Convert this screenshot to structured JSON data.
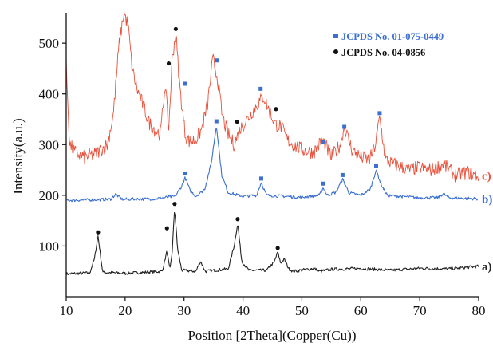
{
  "chart_data": {
    "type": "line",
    "xlabel": "Position [2Theta](Copper(Cu))",
    "ylabel": "Intensity(a.u.)",
    "xlim": [
      10,
      80
    ],
    "ylim": [
      0,
      560
    ],
    "x_ticks": [
      10,
      20,
      30,
      40,
      50,
      60,
      70,
      80
    ],
    "y_ticks": [
      100,
      200,
      300,
      400,
      500
    ],
    "grid": false,
    "legend_position": "top-right",
    "legend": [
      {
        "label": "JCPDS No. 01-075-0449",
        "marker": "square",
        "color": "#3b6fd1"
      },
      {
        "label": "JCPDS No. 04-0856",
        "marker": "circle",
        "color": "#111111"
      }
    ],
    "series": [
      {
        "name": "a)",
        "color": "#222222",
        "noise": 3,
        "x": [
          10,
          14,
          14.8,
          15.4,
          16.2,
          20,
          26.3,
          27.1,
          27.6,
          28.0,
          28.4,
          28.9,
          29.6,
          32,
          32.8,
          33.6,
          37.5,
          38.5,
          39.1,
          39.8,
          41,
          44,
          45.3,
          45.9,
          46.4,
          47,
          47.8,
          48.5,
          52,
          53,
          55,
          60,
          65,
          70,
          75,
          80
        ],
        "y": [
          45,
          47,
          75,
          120,
          48,
          46,
          50,
          90,
          52,
          90,
          175,
          95,
          52,
          50,
          70,
          50,
          55,
          100,
          145,
          70,
          52,
          52,
          68,
          88,
          66,
          74,
          55,
          50,
          56,
          50,
          54,
          56,
          52,
          56,
          55,
          60
        ]
      },
      {
        "name": "b)",
        "color": "#3b6fd1",
        "noise": 3,
        "x": [
          10,
          17.5,
          18.4,
          19.5,
          25,
          28.5,
          29.6,
          30.2,
          31.0,
          32,
          33.5,
          34.6,
          35.5,
          36.4,
          37.5,
          40,
          42.3,
          43.1,
          44,
          50,
          53,
          53.6,
          54.3,
          55.8,
          56.9,
          58,
          60,
          61.6,
          62.6,
          63.5,
          64.5,
          70,
          73,
          74,
          75,
          80
        ],
        "y": [
          190,
          192,
          202,
          192,
          193,
          198,
          218,
          235,
          210,
          198,
          212,
          262,
          338,
          240,
          205,
          198,
          200,
          225,
          200,
          196,
          200,
          215,
          200,
          206,
          232,
          205,
          200,
          212,
          250,
          220,
          200,
          195,
          195,
          203,
          195,
          193
        ]
      },
      {
        "name": "c)",
        "color": "#e8503a",
        "noise": 14,
        "x": [
          10,
          10.6,
          11.5,
          13,
          15,
          17,
          18,
          19,
          19.8,
          20.5,
          21.2,
          22,
          23,
          24,
          25,
          26,
          26.8,
          27.4,
          28.0,
          28.6,
          29.3,
          30.2,
          31,
          32,
          33,
          34,
          34.9,
          35.7,
          36.5,
          37.5,
          38.5,
          39.5,
          41,
          42.5,
          43.5,
          44.5,
          45.5,
          46.5,
          47.5,
          48.5,
          50,
          52,
          53.5,
          55,
          56.5,
          57.2,
          58.5,
          60,
          61.5,
          62.5,
          63.2,
          64.2,
          66,
          68,
          70,
          72,
          74,
          76,
          78,
          80
        ],
        "y": [
          455,
          300,
          285,
          275,
          282,
          300,
          360,
          500,
          560,
          535,
          450,
          410,
          380,
          345,
          330,
          320,
          420,
          330,
          470,
          520,
          410,
          320,
          305,
          310,
          330,
          380,
          470,
          430,
          355,
          320,
          300,
          330,
          355,
          380,
          395,
          365,
          340,
          335,
          310,
          300,
          290,
          285,
          310,
          275,
          300,
          335,
          290,
          275,
          270,
          300,
          355,
          270,
          260,
          250,
          255,
          250,
          262,
          240,
          245,
          238
        ]
      }
    ],
    "peak_markers": [
      {
        "x": 15.4,
        "y": 127,
        "marker": "circle"
      },
      {
        "x": 27.1,
        "y": 135,
        "marker": "circle"
      },
      {
        "x": 28.4,
        "y": 183,
        "marker": "circle"
      },
      {
        "x": 39.1,
        "y": 153,
        "marker": "circle"
      },
      {
        "x": 45.9,
        "y": 96,
        "marker": "circle"
      },
      {
        "x": 30.2,
        "y": 243,
        "marker": "square"
      },
      {
        "x": 35.5,
        "y": 346,
        "marker": "square"
      },
      {
        "x": 43.1,
        "y": 233,
        "marker": "square"
      },
      {
        "x": 53.6,
        "y": 223,
        "marker": "square"
      },
      {
        "x": 56.9,
        "y": 240,
        "marker": "square"
      },
      {
        "x": 62.6,
        "y": 258,
        "marker": "square"
      },
      {
        "x": 27.4,
        "y": 460,
        "marker": "circle"
      },
      {
        "x": 28.6,
        "y": 528,
        "marker": "circle"
      },
      {
        "x": 39.0,
        "y": 345,
        "marker": "circle"
      },
      {
        "x": 45.6,
        "y": 370,
        "marker": "circle"
      },
      {
        "x": 30.2,
        "y": 420,
        "marker": "square"
      },
      {
        "x": 35.6,
        "y": 466,
        "marker": "square"
      },
      {
        "x": 43.0,
        "y": 410,
        "marker": "square"
      },
      {
        "x": 53.6,
        "y": 305,
        "marker": "square"
      },
      {
        "x": 57.2,
        "y": 335,
        "marker": "square"
      },
      {
        "x": 63.2,
        "y": 362,
        "marker": "square"
      }
    ]
  }
}
